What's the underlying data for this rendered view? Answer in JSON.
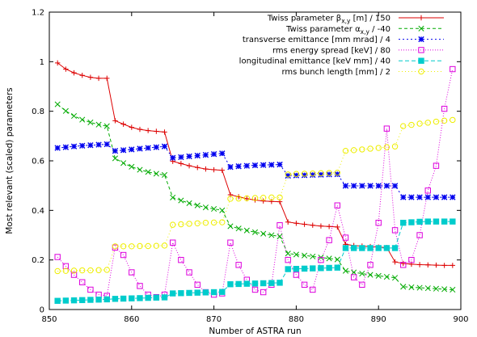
{
  "chart_data": {
    "type": "line",
    "xlabel": "Number of ASTRA run",
    "ylabel": "Most relevant (scaled) parameters",
    "xlim": [
      850,
      900
    ],
    "ylim": [
      0,
      1.2
    ],
    "x_ticks": [
      850,
      860,
      870,
      880,
      890,
      900
    ],
    "y_ticks": [
      0,
      0.2,
      0.4,
      0.6,
      0.8,
      1,
      1.2
    ],
    "x_tick_labels": [
      "850",
      "860",
      "870",
      "880",
      "890",
      "900"
    ],
    "y_tick_labels": [
      "0",
      "0.2",
      "0.4",
      "0.6",
      "0.8",
      "1",
      "1.2"
    ],
    "grid": false,
    "legend_position": "top-right",
    "x": [
      851,
      852,
      853,
      854,
      855,
      856,
      857,
      858,
      859,
      860,
      861,
      862,
      863,
      864,
      865,
      866,
      867,
      868,
      869,
      870,
      871,
      872,
      873,
      874,
      875,
      876,
      877,
      878,
      879,
      880,
      881,
      882,
      883,
      884,
      885,
      886,
      887,
      888,
      889,
      890,
      891,
      892,
      893,
      894,
      895,
      896,
      897,
      898,
      899
    ],
    "series": [
      {
        "name": "Twiss parameter β_x,y [m] / 150",
        "label_main": "Twiss parameter β",
        "label_sub": "x,y",
        "label_rest": " [m] / 150",
        "color": "#dd0000",
        "marker": "plus",
        "dash": "",
        "values": [
          0.995,
          0.97,
          0.955,
          0.945,
          0.937,
          0.933,
          0.933,
          0.762,
          0.748,
          0.735,
          0.727,
          0.722,
          0.719,
          0.716,
          0.598,
          0.589,
          0.58,
          0.573,
          0.567,
          0.564,
          0.562,
          0.463,
          0.455,
          0.447,
          0.442,
          0.438,
          0.436,
          0.435,
          0.353,
          0.348,
          0.344,
          0.34,
          0.337,
          0.335,
          0.333,
          0.263,
          0.258,
          0.256,
          0.254,
          0.252,
          0.25,
          0.192,
          0.186,
          0.183,
          0.181,
          0.18,
          0.179,
          0.178,
          0.178
        ]
      },
      {
        "name": "Twiss parameter α_x,y / -40",
        "label_main": "Twiss parameter α",
        "label_sub": "x,y",
        "label_rest": " / -40",
        "color": "#00aa00",
        "marker": "cross",
        "dash": "4,3",
        "values": [
          0.828,
          0.801,
          0.781,
          0.766,
          0.755,
          0.746,
          0.74,
          0.61,
          0.591,
          0.576,
          0.564,
          0.555,
          0.548,
          0.543,
          0.452,
          0.44,
          0.429,
          0.42,
          0.412,
          0.406,
          0.4,
          0.336,
          0.327,
          0.319,
          0.312,
          0.306,
          0.3,
          0.295,
          0.226,
          0.222,
          0.218,
          0.214,
          0.21,
          0.206,
          0.202,
          0.156,
          0.15,
          0.145,
          0.14,
          0.136,
          0.132,
          0.128,
          0.092,
          0.09,
          0.088,
          0.086,
          0.084,
          0.082,
          0.08
        ]
      },
      {
        "name": "transverse emittance [mm mrad] / 4",
        "label_main": "transverse emittance [mm mrad] / 4",
        "label_sub": "",
        "label_rest": "",
        "color": "#0000ee",
        "marker": "star",
        "dash": "2,3",
        "values": [
          0.652,
          0.655,
          0.658,
          0.661,
          0.663,
          0.665,
          0.667,
          0.64,
          0.643,
          0.646,
          0.649,
          0.652,
          0.655,
          0.658,
          0.612,
          0.615,
          0.618,
          0.621,
          0.624,
          0.627,
          0.63,
          0.575,
          0.578,
          0.58,
          0.582,
          0.583,
          0.584,
          0.585,
          0.54,
          0.541,
          0.542,
          0.543,
          0.544,
          0.545,
          0.546,
          0.499,
          0.499,
          0.499,
          0.499,
          0.499,
          0.499,
          0.499,
          0.453,
          0.453,
          0.453,
          0.453,
          0.453,
          0.453,
          0.453
        ]
      },
      {
        "name": "rms energy spread [keV] / 80",
        "label_main": "rms energy spread [keV] / 80",
        "label_sub": "",
        "label_rest": "",
        "color": "#dd00dd",
        "marker": "box",
        "dash": "1,2",
        "values": [
          0.212,
          0.175,
          0.14,
          0.11,
          0.08,
          0.06,
          0.055,
          0.25,
          0.22,
          0.15,
          0.095,
          0.06,
          0.05,
          0.06,
          0.27,
          0.2,
          0.15,
          0.1,
          0.07,
          0.06,
          0.065,
          0.27,
          0.18,
          0.12,
          0.08,
          0.07,
          0.1,
          0.34,
          0.2,
          0.14,
          0.1,
          0.08,
          0.2,
          0.28,
          0.42,
          0.29,
          0.13,
          0.1,
          0.18,
          0.35,
          0.73,
          0.32,
          0.18,
          0.2,
          0.3,
          0.48,
          0.58,
          0.81,
          0.97
        ]
      },
      {
        "name": "longitudinal emittance [keV mm] / 40",
        "label_main": "longitudinal emittance [keV mm] / 40",
        "label_sub": "",
        "label_rest": "",
        "color": "#00cccc",
        "marker": "filledbox",
        "dash": "5,3",
        "values": [
          0.035,
          0.036,
          0.037,
          0.038,
          0.039,
          0.04,
          0.041,
          0.043,
          0.044,
          0.045,
          0.046,
          0.047,
          0.048,
          0.049,
          0.065,
          0.066,
          0.067,
          0.068,
          0.069,
          0.07,
          0.071,
          0.102,
          0.103,
          0.104,
          0.105,
          0.106,
          0.107,
          0.108,
          0.163,
          0.164,
          0.165,
          0.166,
          0.167,
          0.168,
          0.169,
          0.248,
          0.248,
          0.248,
          0.248,
          0.248,
          0.248,
          0.248,
          0.35,
          0.352,
          0.354,
          0.355,
          0.355,
          0.355,
          0.355
        ]
      },
      {
        "name": "rms bunch length [mm] / 2",
        "label_main": "rms bunch length [mm] / 2",
        "label_sub": "",
        "label_rest": "",
        "color": "#eeee00",
        "marker": "circle",
        "dash": "1,3",
        "values": [
          0.155,
          0.156,
          0.157,
          0.158,
          0.158,
          0.159,
          0.16,
          0.255,
          0.255,
          0.255,
          0.256,
          0.256,
          0.257,
          0.258,
          0.342,
          0.344,
          0.346,
          0.348,
          0.35,
          0.351,
          0.352,
          0.447,
          0.448,
          0.449,
          0.45,
          0.451,
          0.452,
          0.452,
          0.545,
          0.547,
          0.548,
          0.549,
          0.55,
          0.551,
          0.552,
          0.64,
          0.643,
          0.646,
          0.649,
          0.652,
          0.655,
          0.658,
          0.74,
          0.745,
          0.75,
          0.754,
          0.758,
          0.762,
          0.765
        ]
      }
    ]
  }
}
